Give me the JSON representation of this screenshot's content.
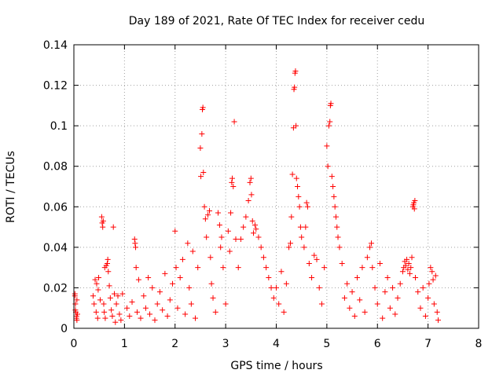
{
  "chart_data": {
    "type": "scatter",
    "title": "Day 189 of 2021, Rate Of TEC Index for receiver cedu",
    "xlabel": "GPS time / hours",
    "ylabel": "ROTI / TECUs",
    "xlim": [
      0,
      8
    ],
    "ylim": [
      0,
      0.14
    ],
    "x_ticks": [
      0,
      1,
      2,
      3,
      4,
      5,
      6,
      7,
      8
    ],
    "x_tick_labels": [
      "0",
      "1",
      "2",
      "3",
      "4",
      "5",
      "6",
      "7",
      "8"
    ],
    "y_ticks": [
      0,
      0.02,
      0.04,
      0.06,
      0.08,
      0.1,
      0.12,
      0.14
    ],
    "y_tick_labels": [
      "0",
      "0.02",
      "0.04",
      "0.06",
      "0.08",
      "0.1",
      "0.12",
      "0.14"
    ],
    "grid": true,
    "marker": "+",
    "marker_color": "#ff0000",
    "series": [
      {
        "name": "ROTI",
        "points": [
          [
            0.02,
            0.017
          ],
          [
            0.02,
            0.016
          ],
          [
            0.03,
            0.012
          ],
          [
            0.03,
            0.009
          ],
          [
            0.04,
            0.008
          ],
          [
            0.05,
            0.006
          ],
          [
            0.05,
            0.005
          ],
          [
            0.06,
            0.014
          ],
          [
            0.06,
            0.004
          ],
          [
            0.07,
            0.007
          ],
          [
            0.38,
            0.016
          ],
          [
            0.4,
            0.012
          ],
          [
            0.42,
            0.024
          ],
          [
            0.44,
            0.008
          ],
          [
            0.45,
            0.022
          ],
          [
            0.47,
            0.005
          ],
          [
            0.48,
            0.019
          ],
          [
            0.49,
            0.025
          ],
          [
            0.52,
            0.014
          ],
          [
            0.55,
            0.055
          ],
          [
            0.56,
            0.052
          ],
          [
            0.57,
            0.05
          ],
          [
            0.58,
            0.053
          ],
          [
            0.59,
            0.012
          ],
          [
            0.6,
            0.008
          ],
          [
            0.61,
            0.03
          ],
          [
            0.62,
            0.005
          ],
          [
            0.64,
            0.031
          ],
          [
            0.66,
            0.032
          ],
          [
            0.67,
            0.034
          ],
          [
            0.68,
            0.028
          ],
          [
            0.7,
            0.021
          ],
          [
            0.72,
            0.015
          ],
          [
            0.74,
            0.009
          ],
          [
            0.76,
            0.006
          ],
          [
            0.78,
            0.05
          ],
          [
            0.8,
            0.017
          ],
          [
            0.82,
            0.003
          ],
          [
            0.84,
            0.012
          ],
          [
            0.87,
            0.016
          ],
          [
            0.9,
            0.007
          ],
          [
            0.93,
            0.004
          ],
          [
            0.96,
            0.017
          ],
          [
            1.05,
            0.01
          ],
          [
            1.1,
            0.006
          ],
          [
            1.15,
            0.013
          ],
          [
            1.2,
            0.044
          ],
          [
            1.21,
            0.042
          ],
          [
            1.22,
            0.04
          ],
          [
            1.23,
            0.03
          ],
          [
            1.25,
            0.008
          ],
          [
            1.28,
            0.024
          ],
          [
            1.32,
            0.005
          ],
          [
            1.38,
            0.016
          ],
          [
            1.42,
            0.01
          ],
          [
            1.47,
            0.025
          ],
          [
            1.5,
            0.007
          ],
          [
            1.55,
            0.02
          ],
          [
            1.6,
            0.004
          ],
          [
            1.65,
            0.012
          ],
          [
            1.7,
            0.018
          ],
          [
            1.75,
            0.009
          ],
          [
            1.8,
            0.027
          ],
          [
            1.85,
            0.006
          ],
          [
            1.9,
            0.014
          ],
          [
            1.95,
            0.022
          ],
          [
            2.0,
            0.048
          ],
          [
            2.02,
            0.03
          ],
          [
            2.05,
            0.01
          ],
          [
            2.1,
            0.025
          ],
          [
            2.15,
            0.034
          ],
          [
            2.2,
            0.007
          ],
          [
            2.25,
            0.042
          ],
          [
            2.28,
            0.02
          ],
          [
            2.32,
            0.012
          ],
          [
            2.35,
            0.038
          ],
          [
            2.4,
            0.005
          ],
          [
            2.45,
            0.03
          ],
          [
            2.5,
            0.089
          ],
          [
            2.51,
            0.075
          ],
          [
            2.53,
            0.096
          ],
          [
            2.54,
            0.108
          ],
          [
            2.55,
            0.109
          ],
          [
            2.56,
            0.077
          ],
          [
            2.58,
            0.06
          ],
          [
            2.6,
            0.054
          ],
          [
            2.62,
            0.045
          ],
          [
            2.65,
            0.056
          ],
          [
            2.68,
            0.058
          ],
          [
            2.7,
            0.035
          ],
          [
            2.72,
            0.022
          ],
          [
            2.75,
            0.015
          ],
          [
            2.8,
            0.008
          ],
          [
            2.85,
            0.057
          ],
          [
            2.88,
            0.051
          ],
          [
            2.9,
            0.04
          ],
          [
            2.92,
            0.045
          ],
          [
            2.95,
            0.03
          ],
          [
            3.0,
            0.012
          ],
          [
            3.05,
            0.048
          ],
          [
            3.08,
            0.038
          ],
          [
            3.1,
            0.057
          ],
          [
            3.12,
            0.072
          ],
          [
            3.13,
            0.074
          ],
          [
            3.15,
            0.07
          ],
          [
            3.17,
            0.102
          ],
          [
            3.2,
            0.044
          ],
          [
            3.25,
            0.03
          ],
          [
            3.3,
            0.044
          ],
          [
            3.35,
            0.05
          ],
          [
            3.4,
            0.055
          ],
          [
            3.45,
            0.063
          ],
          [
            3.48,
            0.072
          ],
          [
            3.5,
            0.074
          ],
          [
            3.51,
            0.066
          ],
          [
            3.53,
            0.053
          ],
          [
            3.55,
            0.047
          ],
          [
            3.58,
            0.051
          ],
          [
            3.6,
            0.049
          ],
          [
            3.65,
            0.045
          ],
          [
            3.7,
            0.04
          ],
          [
            3.75,
            0.035
          ],
          [
            3.8,
            0.03
          ],
          [
            3.85,
            0.025
          ],
          [
            3.9,
            0.02
          ],
          [
            3.95,
            0.015
          ],
          [
            4.0,
            0.02
          ],
          [
            4.05,
            0.012
          ],
          [
            4.1,
            0.028
          ],
          [
            4.15,
            0.008
          ],
          [
            4.2,
            0.022
          ],
          [
            4.25,
            0.04
          ],
          [
            4.28,
            0.042
          ],
          [
            4.3,
            0.055
          ],
          [
            4.32,
            0.076
          ],
          [
            4.34,
            0.099
          ],
          [
            4.35,
            0.118
          ],
          [
            4.36,
            0.119
          ],
          [
            4.37,
            0.126
          ],
          [
            4.38,
            0.127
          ],
          [
            4.39,
            0.1
          ],
          [
            4.4,
            0.074
          ],
          [
            4.42,
            0.07
          ],
          [
            4.44,
            0.065
          ],
          [
            4.46,
            0.06
          ],
          [
            4.48,
            0.05
          ],
          [
            4.5,
            0.045
          ],
          [
            4.55,
            0.04
          ],
          [
            4.58,
            0.05
          ],
          [
            4.6,
            0.062
          ],
          [
            4.62,
            0.06
          ],
          [
            4.65,
            0.032
          ],
          [
            4.7,
            0.025
          ],
          [
            4.75,
            0.036
          ],
          [
            4.8,
            0.034
          ],
          [
            4.85,
            0.02
          ],
          [
            4.9,
            0.012
          ],
          [
            4.95,
            0.03
          ],
          [
            5.0,
            0.09
          ],
          [
            5.02,
            0.08
          ],
          [
            5.04,
            0.1
          ],
          [
            5.06,
            0.102
          ],
          [
            5.07,
            0.11
          ],
          [
            5.08,
            0.111
          ],
          [
            5.1,
            0.075
          ],
          [
            5.12,
            0.07
          ],
          [
            5.14,
            0.065
          ],
          [
            5.16,
            0.06
          ],
          [
            5.18,
            0.055
          ],
          [
            5.2,
            0.05
          ],
          [
            5.22,
            0.045
          ],
          [
            5.25,
            0.04
          ],
          [
            5.3,
            0.032
          ],
          [
            5.35,
            0.015
          ],
          [
            5.4,
            0.022
          ],
          [
            5.45,
            0.01
          ],
          [
            5.5,
            0.018
          ],
          [
            5.55,
            0.006
          ],
          [
            5.6,
            0.025
          ],
          [
            5.65,
            0.014
          ],
          [
            5.7,
            0.03
          ],
          [
            5.75,
            0.008
          ],
          [
            5.8,
            0.035
          ],
          [
            5.85,
            0.04
          ],
          [
            5.88,
            0.042
          ],
          [
            5.9,
            0.03
          ],
          [
            5.95,
            0.02
          ],
          [
            6.0,
            0.012
          ],
          [
            6.05,
            0.032
          ],
          [
            6.1,
            0.005
          ],
          [
            6.15,
            0.018
          ],
          [
            6.2,
            0.025
          ],
          [
            6.25,
            0.01
          ],
          [
            6.3,
            0.02
          ],
          [
            6.35,
            0.007
          ],
          [
            6.4,
            0.015
          ],
          [
            6.45,
            0.022
          ],
          [
            6.5,
            0.028
          ],
          [
            6.52,
            0.03
          ],
          [
            6.54,
            0.033
          ],
          [
            6.56,
            0.031
          ],
          [
            6.58,
            0.034
          ],
          [
            6.6,
            0.029
          ],
          [
            6.62,
            0.032
          ],
          [
            6.64,
            0.027
          ],
          [
            6.66,
            0.03
          ],
          [
            6.68,
            0.035
          ],
          [
            6.7,
            0.06
          ],
          [
            6.71,
            0.061
          ],
          [
            6.72,
            0.062
          ],
          [
            6.73,
            0.059
          ],
          [
            6.74,
            0.063
          ],
          [
            6.75,
            0.025
          ],
          [
            6.8,
            0.018
          ],
          [
            6.85,
            0.01
          ],
          [
            6.9,
            0.02
          ],
          [
            6.95,
            0.006
          ],
          [
            7.0,
            0.015
          ],
          [
            7.02,
            0.022
          ],
          [
            7.05,
            0.03
          ],
          [
            7.08,
            0.028
          ],
          [
            7.1,
            0.024
          ],
          [
            7.12,
            0.012
          ],
          [
            7.15,
            0.026
          ],
          [
            7.18,
            0.008
          ],
          [
            7.2,
            0.004
          ]
        ]
      }
    ]
  }
}
